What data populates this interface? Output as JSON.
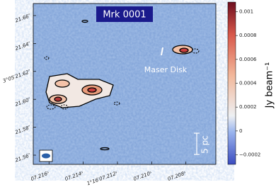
{
  "chart_data": {
    "type": "image",
    "title": "Mrk 0001",
    "annotations": [
      "Maser Disk",
      "5 pc"
    ],
    "xlim": [
      7.21692,
      7.20625
    ],
    "xticks": [
      {
        "value": 7.216,
        "label": "07.216ˢ"
      },
      {
        "value": 7.214,
        "label": "07.214ˢ"
      },
      {
        "value": 7.212,
        "label": "1°16′07.212ˢ"
      },
      {
        "value": 7.21,
        "label": "07.210ˢ"
      },
      {
        "value": 7.208,
        "label": "07.208ˢ"
      }
    ],
    "ylim": [
      21.5534,
      21.6686
    ],
    "yticks": [
      {
        "value": 21.66,
        "label": "21.66″"
      },
      {
        "value": 21.64,
        "label": "21.64″"
      },
      {
        "value": 21.62,
        "label": "3°05′21.62″"
      },
      {
        "value": 21.6,
        "label": "21.60″"
      },
      {
        "value": 21.58,
        "label": "21.58″"
      },
      {
        "value": 21.56,
        "label": "21.56″"
      }
    ],
    "colorbar": {
      "label": "Jy beam⁻¹",
      "lim": [
        -0.00028,
        0.00108
      ],
      "ticks": [
        {
          "value": -0.0002,
          "label": "−0.0002"
        },
        0,
        0.0002,
        0.0004,
        0.0006,
        0.0008,
        0.001
      ]
    }
  }
}
